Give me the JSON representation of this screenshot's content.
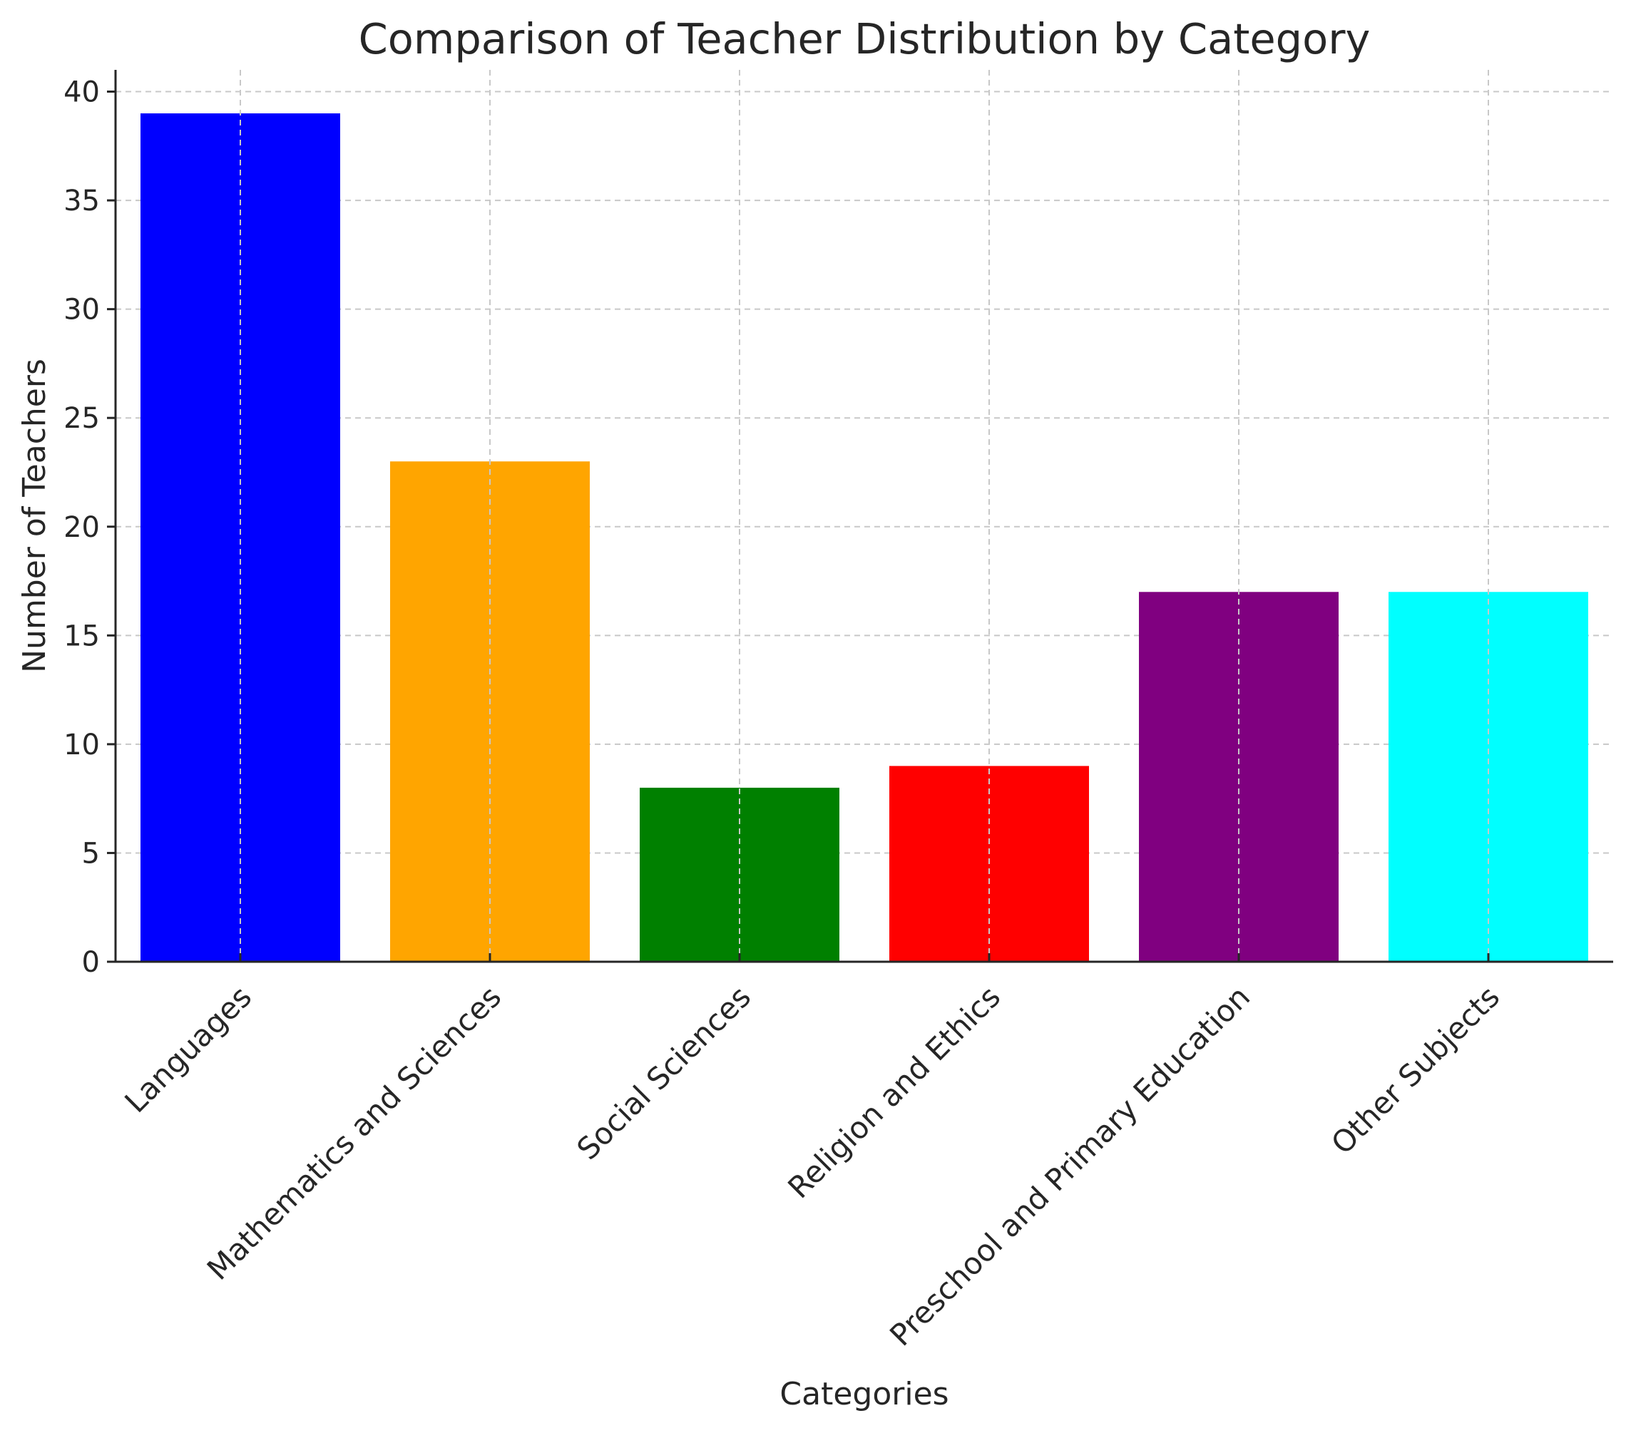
{
  "chart_data": {
    "type": "bar",
    "title": "Comparison of Teacher Distribution by Category",
    "xlabel": "Categories",
    "ylabel": "Number of Teachers",
    "categories": [
      "Languages",
      "Mathematics and Sciences",
      "Social Sciences",
      "Religion and Ethics",
      "Preschool and Primary Education",
      "Other Subjects"
    ],
    "values": [
      39,
      23,
      8,
      9,
      17,
      17
    ],
    "colors": [
      "#0000ff",
      "#ffa500",
      "#008000",
      "#ff0000",
      "#800080",
      "#00ffff"
    ],
    "ylim": [
      0,
      41
    ],
    "yticks": [
      0,
      5,
      10,
      15,
      20,
      25,
      30,
      35,
      40
    ],
    "ytick_labels": [
      "0",
      "5",
      "10",
      "15",
      "20",
      "25",
      "30",
      "35",
      "40"
    ],
    "grid": true,
    "legend": "none"
  }
}
